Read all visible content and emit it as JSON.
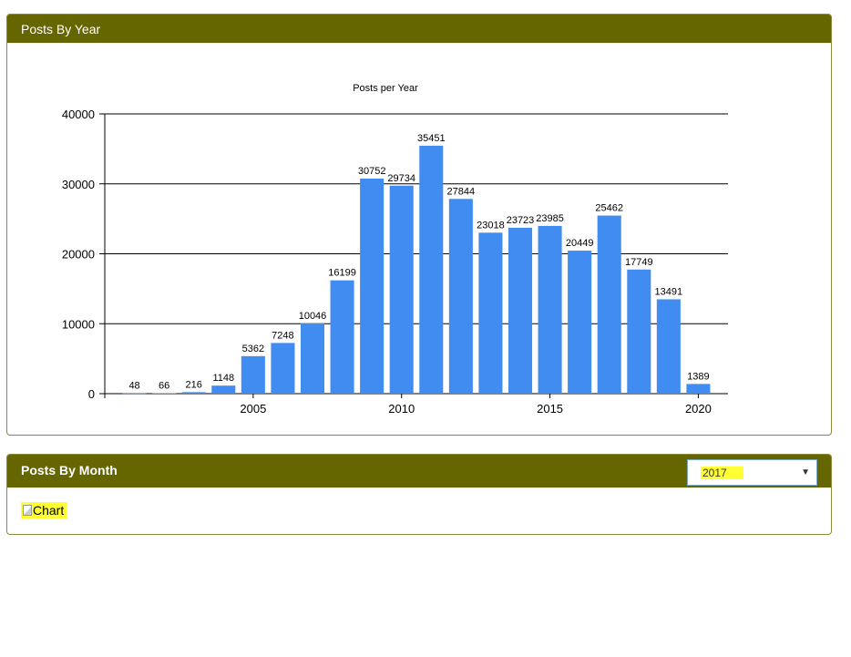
{
  "panels": {
    "year": {
      "title": "Posts By Year"
    },
    "month": {
      "title": "Posts By Month",
      "selected_year": "2017",
      "image_alt": "Chart"
    }
  },
  "colors": {
    "header": "#666600",
    "bar": "#418cf0",
    "highlight": "#ffff33"
  },
  "chart_data": {
    "type": "bar",
    "title": "Posts per Year",
    "xlabel": "",
    "ylabel": "",
    "x": [
      2001,
      2002,
      2003,
      2004,
      2005,
      2006,
      2007,
      2008,
      2009,
      2010,
      2011,
      2012,
      2013,
      2014,
      2015,
      2016,
      2017,
      2018,
      2019,
      2020
    ],
    "values": [
      48,
      66,
      216,
      1148,
      5362,
      7248,
      10046,
      16199,
      30752,
      29734,
      35451,
      27844,
      23018,
      23723,
      23985,
      20449,
      25462,
      17749,
      13491,
      1389
    ],
    "xlim": [
      2000,
      2021
    ],
    "ylim": [
      0,
      40000
    ],
    "yticks": [
      0,
      10000,
      20000,
      30000,
      40000
    ],
    "xticks": [
      2005,
      2010,
      2015,
      2020
    ],
    "grid": "horizontal",
    "data_labels": true,
    "legend": "none"
  }
}
